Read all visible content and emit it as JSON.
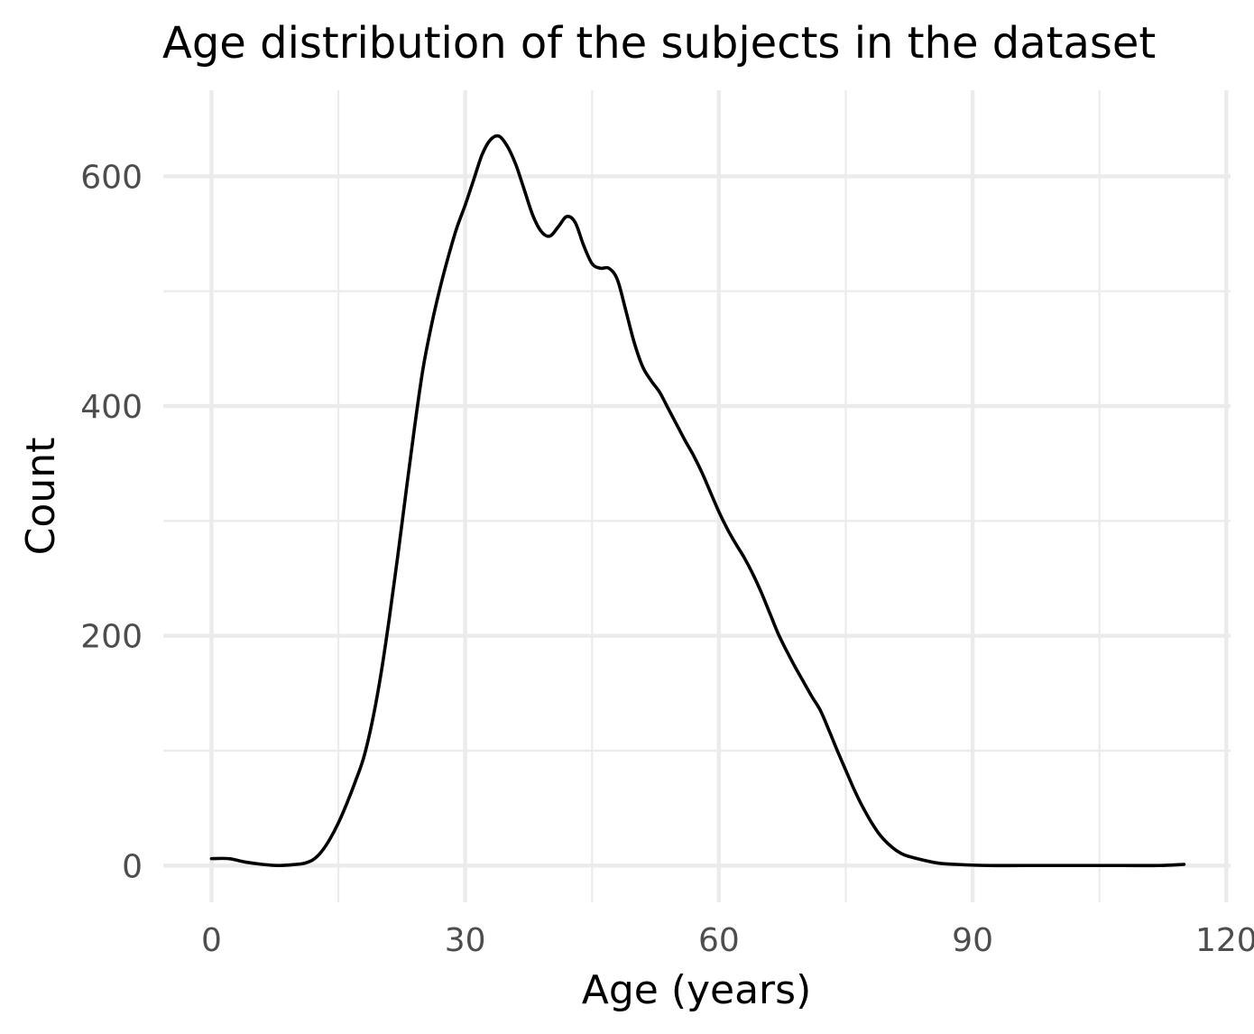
{
  "chart_data": {
    "type": "line",
    "title": "Age distribution of the subjects in the dataset",
    "xlabel": "Age (years)",
    "ylabel": "Count",
    "xlim": [
      -5.7,
      120.5
    ],
    "ylim": [
      -32,
      675
    ],
    "x_ticks": [
      0,
      30,
      60,
      90,
      120
    ],
    "x_tick_labels": [
      "0",
      "30",
      "60",
      "90",
      "120"
    ],
    "x_minor_ticks": [
      15,
      45,
      75,
      105
    ],
    "y_ticks": [
      0,
      200,
      400,
      600
    ],
    "y_tick_labels": [
      "0",
      "200",
      "400",
      "600"
    ],
    "y_minor_ticks": [
      100,
      300,
      500
    ],
    "grid": true,
    "legend": "none",
    "series": [
      {
        "color": "#000000",
        "points": [
          [
            0,
            6
          ],
          [
            2,
            6
          ],
          [
            4,
            3
          ],
          [
            6,
            1
          ],
          [
            8,
            0
          ],
          [
            10,
            1
          ],
          [
            11,
            2
          ],
          [
            12,
            5
          ],
          [
            13,
            12
          ],
          [
            14,
            23
          ],
          [
            15,
            37
          ],
          [
            16,
            54
          ],
          [
            17,
            73
          ],
          [
            18,
            94
          ],
          [
            19,
            125
          ],
          [
            20,
            165
          ],
          [
            21,
            214
          ],
          [
            22,
            268
          ],
          [
            23,
            325
          ],
          [
            24,
            381
          ],
          [
            25,
            432
          ],
          [
            26,
            470
          ],
          [
            27,
            502
          ],
          [
            28,
            530
          ],
          [
            29,
            555
          ],
          [
            30,
            575
          ],
          [
            31,
            597
          ],
          [
            32,
            619
          ],
          [
            33,
            632
          ],
          [
            34,
            635
          ],
          [
            35,
            626
          ],
          [
            36,
            610
          ],
          [
            37,
            588
          ],
          [
            38,
            566
          ],
          [
            39,
            552
          ],
          [
            40,
            548
          ],
          [
            41,
            556
          ],
          [
            42,
            565
          ],
          [
            43,
            560
          ],
          [
            44,
            540
          ],
          [
            45,
            524
          ],
          [
            46,
            520
          ],
          [
            47,
            520
          ],
          [
            48,
            510
          ],
          [
            49,
            483
          ],
          [
            50,
            455
          ],
          [
            51,
            434
          ],
          [
            52,
            422
          ],
          [
            53,
            412
          ],
          [
            54,
            398
          ],
          [
            55,
            384
          ],
          [
            56,
            370
          ],
          [
            57,
            357
          ],
          [
            58,
            342
          ],
          [
            59,
            325
          ],
          [
            60,
            308
          ],
          [
            61,
            293
          ],
          [
            62,
            280
          ],
          [
            63,
            268
          ],
          [
            64,
            254
          ],
          [
            65,
            238
          ],
          [
            66,
            220
          ],
          [
            67,
            202
          ],
          [
            68,
            187
          ],
          [
            69,
            173
          ],
          [
            70,
            160
          ],
          [
            71,
            147
          ],
          [
            72,
            135
          ],
          [
            73,
            118
          ],
          [
            74,
            100
          ],
          [
            75,
            83
          ],
          [
            76,
            66
          ],
          [
            77,
            51
          ],
          [
            78,
            38
          ],
          [
            79,
            27
          ],
          [
            80,
            19
          ],
          [
            81,
            13
          ],
          [
            82,
            9
          ],
          [
            84,
            5
          ],
          [
            86,
            2
          ],
          [
            88,
            1
          ],
          [
            92,
            0
          ],
          [
            96,
            0
          ],
          [
            100,
            0
          ],
          [
            104,
            0
          ],
          [
            108,
            0
          ],
          [
            112,
            0
          ],
          [
            115,
            1
          ]
        ]
      }
    ]
  }
}
